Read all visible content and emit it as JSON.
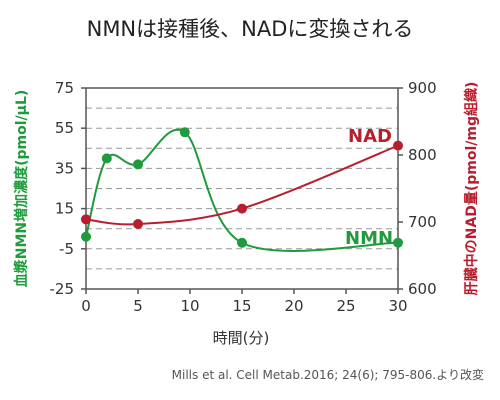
{
  "chart_data": {
    "type": "line",
    "title": "NMNは接種後、NADに変換される",
    "xlabel": "時間(分)",
    "ylabel_left": "血漿NMN増加濃度(pmol/μL)",
    "ylabel_right": "肝臓中のNAD量(pmol/mg組織)",
    "x_ticks": [
      "0",
      "5",
      "10",
      "15",
      "20",
      "25",
      "30"
    ],
    "y_left_ticks": [
      "75",
      "55",
      "35",
      "15",
      "-5",
      "-25"
    ],
    "y_right_ticks": [
      "900",
      "800",
      "700",
      "600"
    ],
    "xlim": [
      0,
      30
    ],
    "ylim_left": [
      -25,
      75
    ],
    "ylim_right": [
      600,
      900
    ],
    "grid": "dashed horizontal",
    "series": [
      {
        "name": "NMN",
        "axis": "left",
        "color": "#1f9a3c",
        "x": [
          0,
          2,
          5,
          9.5,
          15,
          30
        ],
        "y": [
          1,
          40,
          37,
          53,
          -2,
          -2
        ]
      },
      {
        "name": "NAD",
        "axis": "right",
        "color": "#b81e2e",
        "x": [
          0,
          5,
          15,
          30
        ],
        "y": [
          704,
          697,
          720,
          814
        ]
      }
    ],
    "source": "Mills et al. Cell Metab.2016; 24(6); 795-806.より改変"
  }
}
